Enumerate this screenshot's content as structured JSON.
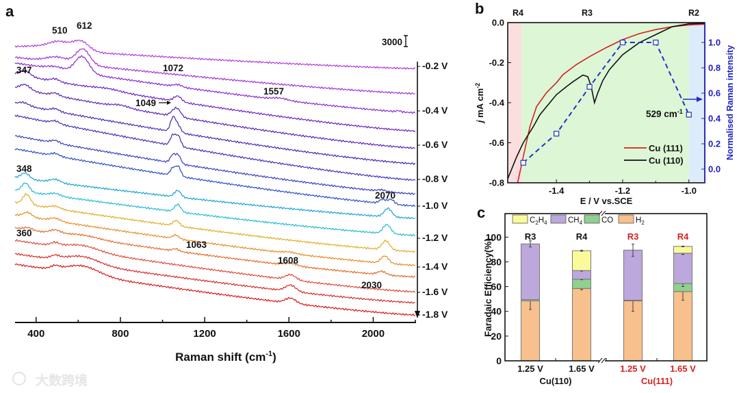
{
  "panel_labels": {
    "a": "a",
    "b": "b",
    "c": "c"
  },
  "watermark": "大数跨境",
  "chart_data": [
    {
      "panel": "a",
      "type": "line",
      "xlabel": "Raman shift (cm",
      "xlabel_sup": "-1",
      "xlabel_end": ")",
      "xlim": [
        300,
        2200
      ],
      "ylim": [
        0,
        85000
      ],
      "xticks": [
        400,
        800,
        1200,
        1600,
        2000
      ],
      "scale_bar_label": "3000",
      "voltage_labels": [
        "-0.2 V",
        "-0.4 V",
        "-0.6 V",
        "-0.8 V",
        "-1.0 V",
        "-1.2 V",
        "-1.4 V",
        "-1.6 V",
        "-1.8 V"
      ],
      "peak_labels": [
        "510",
        "612",
        "347",
        "1072",
        "1049",
        "1557",
        "348",
        "2070",
        "360",
        "1063",
        "1608",
        "2030"
      ],
      "series": [
        {
          "color": "#b444d8",
          "end": 69900,
          "tilt": 5800,
          "peaks": [
            [
              450,
              900,
              100
            ],
            [
              510,
              1700,
              45
            ],
            [
              612,
              2700,
              38
            ]
          ]
        },
        {
          "color": "#a63ad2",
          "end": 63000,
          "tilt": 10000,
          "peaks": [
            [
              500,
              1400,
              50
            ],
            [
              622,
              4300,
              33
            ]
          ]
        },
        {
          "color": "#8c32d0",
          "end": 57750,
          "tilt": 13700,
          "peaks": [
            [
              490,
              700,
              40
            ],
            [
              618,
              4600,
              33
            ],
            [
              1072,
              600,
              20
            ],
            [
              1557,
              500,
              35
            ],
            [
              2120,
              300,
              10
            ]
          ]
        },
        {
          "color": "#7028c4",
          "end": 52700,
          "tilt": 15600,
          "peaks": [
            [
              347,
              1500,
              25
            ],
            [
              490,
              700,
              20
            ],
            [
              740,
              500,
              60
            ],
            [
              1072,
              1500,
              18
            ]
          ]
        },
        {
          "color": "#5c2cba",
          "end": 48000,
          "tilt": 16500,
          "peaks": [
            [
              347,
              1500,
              25
            ],
            [
              490,
              700,
              20
            ],
            [
              800,
              600,
              40
            ],
            [
              1049,
              1000,
              15
            ],
            [
              1072,
              2000,
              16
            ]
          ]
        },
        {
          "color": "#4c30b4",
          "end": 43700,
          "tilt": 16500,
          "peaks": [
            [
              340,
              800,
              25
            ],
            [
              490,
              700,
              20
            ],
            [
              1049,
              3600,
              12
            ],
            [
              1072,
              2000,
              14
            ]
          ]
        },
        {
          "color": "#4438b8",
          "end": 39200,
          "tilt": 17800,
          "peaks": [
            [
              490,
              700,
              20
            ],
            [
              1049,
              2800,
              12
            ],
            [
              1075,
              2800,
              12
            ]
          ]
        },
        {
          "color": "#3a46c0",
          "end": 35400,
          "tilt": 16000,
          "peaks": [
            [
              490,
              700,
              20
            ],
            [
              1049,
              2200,
              12
            ],
            [
              1075,
              2300,
              12
            ],
            [
              2040,
              400,
              20
            ]
          ]
        },
        {
          "color": "#3252c8",
          "end": 32100,
          "tilt": 15700,
          "peaks": [
            [
              490,
              700,
              20
            ],
            [
              1049,
              2000,
              12
            ],
            [
              1075,
              2600,
              12
            ],
            [
              2045,
              1100,
              15
            ],
            [
              2085,
              1300,
              15
            ]
          ]
        },
        {
          "color": "#22a6d8",
          "end": 28700,
          "tilt": 11200,
          "peaks": [
            [
              348,
              1600,
              20
            ],
            [
              490,
              900,
              25
            ],
            [
              1072,
              1800,
              15
            ],
            [
              2070,
              2300,
              18
            ]
          ]
        },
        {
          "color": "#2cbcd8",
          "end": 24000,
          "tilt": 12400,
          "peaks": [
            [
              350,
              2400,
              18
            ],
            [
              490,
              700,
              25
            ],
            [
              1072,
              2000,
              15
            ],
            [
              2065,
              2500,
              18
            ]
          ]
        },
        {
          "color": "#e2b030",
          "end": 19500,
          "tilt": 13500,
          "peaks": [
            [
              355,
              2800,
              18
            ],
            [
              490,
              700,
              25
            ],
            [
              1065,
              1500,
              15
            ],
            [
              2060,
              2500,
              18
            ]
          ]
        },
        {
          "color": "#e89030",
          "end": 15750,
          "tilt": 13900,
          "peaks": [
            [
              360,
              1200,
              20
            ],
            [
              490,
              800,
              25
            ],
            [
              1063,
              1000,
              15
            ],
            [
              1600,
              400,
              30
            ],
            [
              2055,
              2000,
              18
            ]
          ]
        },
        {
          "color": "#e27232",
          "end": 12560,
          "tilt": 13500,
          "peaks": [
            [
              360,
              600,
              20
            ],
            [
              490,
              900,
              25
            ],
            [
              620,
              800,
              80
            ],
            [
              1063,
              600,
              15
            ],
            [
              1608,
              600,
              30
            ],
            [
              2040,
              900,
              20
            ]
          ]
        },
        {
          "color": "#de5040",
          "end": 8440,
          "tilt": 14200,
          "peaks": [
            [
              490,
              800,
              20
            ],
            [
              620,
              1500,
              80
            ],
            [
              1608,
              1400,
              25
            ]
          ]
        },
        {
          "color": "#d83434",
          "end": 5440,
          "tilt": 13500,
          "peaks": [
            [
              490,
              800,
              20
            ],
            [
              620,
              2000,
              80
            ],
            [
              1608,
              1700,
              25
            ]
          ]
        },
        {
          "color": "#d82222",
          "end": 2060,
          "tilt": 14000,
          "peaks": [
            [
              490,
              800,
              20
            ],
            [
              620,
              2400,
              80
            ],
            [
              1608,
              1400,
              25
            ]
          ]
        }
      ]
    },
    {
      "panel": "b",
      "type": "line",
      "xlabel": "E / V vs.SCE",
      "ylabel_italic": "j",
      "ylabel": " mA cm",
      "ylabel_sup": "-2",
      "y2label": "Normalised Raman intensity",
      "xlim": [
        -1.547,
        -0.952
      ],
      "ylim": [
        -0.8,
        0.0
      ],
      "y2lim": [
        -0.108,
        1.157
      ],
      "xticks": [
        "-1.4",
        "-1.2",
        "-1.0"
      ],
      "yticks": [
        "0.0",
        "-0.2",
        "-0.4",
        "-0.6",
        "-0.8"
      ],
      "y2ticks": [
        "0.0",
        "0.2",
        "0.4",
        "0.6",
        "0.8",
        "1.0"
      ],
      "regions": [
        {
          "label": "R4",
          "from": -1.547,
          "to": -1.504,
          "color": "#fbdede"
        },
        {
          "label": "R3",
          "from": -1.504,
          "to": -1.0,
          "color": "#dcf6d6"
        },
        {
          "label": "R2",
          "from": -1.0,
          "to": -0.952,
          "color": "#dcecfa"
        }
      ],
      "annotation": "529 cm",
      "annotation_sup": "-1",
      "legend_position": "bottom-right",
      "series": [
        {
          "name": "Cu (111)",
          "color": "#d42020",
          "axis": "left",
          "x": [
            -1.517,
            -1.5,
            -1.48,
            -1.46,
            -1.43,
            -1.4,
            -1.38,
            -1.34,
            -1.3,
            -1.25,
            -1.2,
            -1.15,
            -1.1,
            -1.05,
            -1.0,
            -0.952
          ],
          "y": [
            -0.8,
            -0.67,
            -0.52,
            -0.42,
            -0.35,
            -0.3,
            -0.26,
            -0.21,
            -0.17,
            -0.125,
            -0.085,
            -0.055,
            -0.035,
            -0.02,
            -0.012,
            -0.008
          ]
        },
        {
          "name": "Cu (110)",
          "color": "#111111",
          "axis": "left",
          "x": [
            -1.547,
            -1.52,
            -1.5,
            -1.47,
            -1.45,
            -1.42,
            -1.4,
            -1.37,
            -1.35,
            -1.32,
            -1.305,
            -1.295,
            -1.285,
            -1.275,
            -1.26,
            -1.24,
            -1.2,
            -1.15,
            -1.1,
            -1.05,
            -1.0,
            -0.952
          ],
          "y": [
            -0.78,
            -0.67,
            -0.6,
            -0.52,
            -0.46,
            -0.4,
            -0.36,
            -0.32,
            -0.295,
            -0.262,
            -0.27,
            -0.32,
            -0.4,
            -0.35,
            -0.29,
            -0.235,
            -0.16,
            -0.1,
            -0.06,
            -0.02,
            -0.006,
            -0.003
          ]
        },
        {
          "name": "529 cm-1",
          "color": "#2030c0",
          "axis": "right",
          "dashed": true,
          "marker": "square",
          "x": [
            -1.5,
            -1.4,
            -1.3,
            -1.2,
            -1.1,
            -1.0
          ],
          "y": [
            0.05,
            0.28,
            0.65,
            1.0,
            1.0,
            0.43
          ]
        }
      ]
    },
    {
      "panel": "c",
      "type": "bar",
      "stacked": true,
      "ylabel": "Faradaic Efficiency(%)",
      "ylim": [
        0,
        119
      ],
      "yticks": [
        "0",
        "20",
        "40",
        "60",
        "80",
        "100"
      ],
      "categories": [
        "1.25 V",
        "1.65 V",
        "1.25 V",
        "1.65 V"
      ],
      "region_labels": [
        "R3",
        "R4",
        "R3",
        "R4"
      ],
      "groups": [
        {
          "name": "Cu(110)",
          "color": "#111111"
        },
        {
          "name": "Cu(111)",
          "color": "#d42020"
        }
      ],
      "category_colors": [
        "#111111",
        "#111111",
        "#d42020",
        "#d42020"
      ],
      "legend_position": "top",
      "series": [
        {
          "name": "H",
          "sub": "2",
          "color": "#f8c08c",
          "values": [
            48.5,
            58.5,
            48.5,
            56.0
          ],
          "errors": [
            7,
            1,
            8.5,
            7
          ]
        },
        {
          "name": "CO",
          "sub": "",
          "color": "#90d090",
          "values": [
            1.0,
            7.5,
            0.5,
            6.5
          ],
          "errors": [
            0,
            0.5,
            0,
            2.5
          ]
        },
        {
          "name": "CH",
          "sub": "4",
          "color": "#bca8dc",
          "values": [
            45.0,
            7.0,
            40.5,
            24.5
          ],
          "errors": [
            2.5,
            0.5,
            5,
            1
          ]
        },
        {
          "name": "C",
          "sub": "2",
          "name2": "H",
          "sub2": "4",
          "color": "#fafa9a",
          "values": [
            0,
            16.0,
            0,
            5.5
          ],
          "errors": [
            0,
            0.5,
            0,
            0.3
          ]
        }
      ]
    }
  ]
}
